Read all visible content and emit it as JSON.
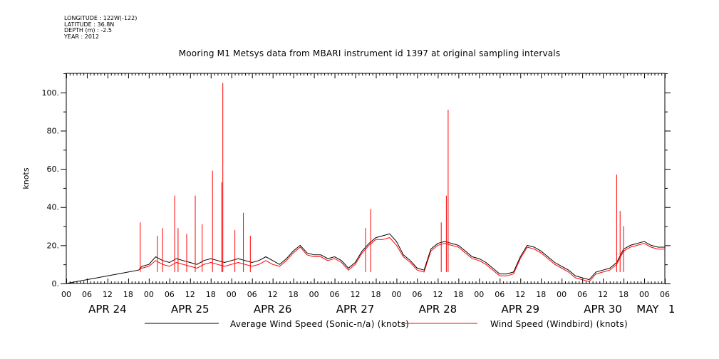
{
  "header": {
    "meta_lines": [
      "LONGITUDE : 122W(-122)",
      "LATITUDE : 36.8N",
      "DEPTH (m) : -2.5",
      "YEAR : 2012"
    ],
    "title": "Mooring M1 Metsys data from MBARI instrument id 1397 at original sampling intervals"
  },
  "chart_data": {
    "type": "line",
    "title": "Mooring M1 Metsys data from MBARI instrument id 1397 at original sampling intervals",
    "ylabel": "knots",
    "xlabel": "",
    "ylim": [
      0,
      110
    ],
    "xlim_hours": [
      0,
      174
    ],
    "grid": false,
    "y_ticks": [
      0,
      20,
      40,
      60,
      80,
      100
    ],
    "y_tick_labels": [
      "0.",
      "20.",
      "40.",
      "60.",
      "80.",
      "100."
    ],
    "x_hour_ticks": [
      0,
      6,
      12,
      18,
      24,
      30,
      36,
      42,
      48,
      54,
      60,
      66,
      72,
      78,
      84,
      90,
      96,
      102,
      108,
      114,
      120,
      126,
      132,
      138,
      144,
      150,
      156,
      162,
      168,
      174
    ],
    "x_hour_tick_labels": [
      "00",
      "06",
      "12",
      "18",
      "00",
      "06",
      "12",
      "18",
      "00",
      "06",
      "12",
      "18",
      "00",
      "06",
      "12",
      "18",
      "00",
      "06",
      "12",
      "18",
      "00",
      "06",
      "12",
      "18",
      "00",
      "06",
      "12",
      "18",
      "00",
      "06"
    ],
    "day_labels": [
      {
        "label": "APR 24",
        "hour": 12
      },
      {
        "label": "APR 25",
        "hour": 36
      },
      {
        "label": "APR 26",
        "hour": 60
      },
      {
        "label": "APR 27",
        "hour": 84
      },
      {
        "label": "APR 28",
        "hour": 108
      },
      {
        "label": "APR 29",
        "hour": 132
      },
      {
        "label": "APR 30",
        "hour": 156
      },
      {
        "label": "MAY",
        "hour": 169
      },
      {
        "label": "1",
        "hour": 176
      }
    ],
    "series": [
      {
        "name": "Average Wind Speed (Sonic-n/a) (knots)",
        "color": "#000000",
        "x": [
          0,
          21,
          22,
          24,
          26,
          28,
          30,
          32,
          34,
          36,
          38,
          40,
          42,
          44,
          46,
          48,
          50,
          52,
          54,
          56,
          58,
          60,
          62,
          64,
          66,
          68,
          70,
          72,
          74,
          76,
          78,
          80,
          82,
          84,
          86,
          88,
          90,
          92,
          94,
          96,
          98,
          100,
          102,
          104,
          106,
          108,
          110,
          112,
          114,
          116,
          118,
          120,
          122,
          124,
          126,
          128,
          130,
          132,
          134,
          136,
          138,
          140,
          142,
          144,
          146,
          148,
          150,
          152,
          154,
          156,
          158,
          160,
          162,
          164,
          166,
          168,
          170,
          172,
          174
        ],
        "y": [
          0,
          7,
          9,
          10,
          14,
          12,
          11,
          13,
          12,
          11,
          10,
          12,
          13,
          12,
          11,
          12,
          13,
          12,
          11,
          12,
          14,
          12,
          10,
          13,
          17,
          20,
          16,
          15,
          15,
          13,
          14,
          12,
          8,
          11,
          17,
          21,
          24,
          25,
          26,
          22,
          15,
          12,
          8,
          7,
          18,
          21,
          22,
          21,
          20,
          17,
          14,
          13,
          11,
          8,
          5,
          5,
          6,
          14,
          20,
          19,
          17,
          14,
          11,
          9,
          7,
          4,
          3,
          2,
          6,
          7,
          8,
          11,
          18,
          20,
          21,
          22,
          20,
          19,
          19
        ]
      },
      {
        "name": "Wind Speed (Windbird) (knots)",
        "color": "#ff0000",
        "x": [
          21,
          22,
          24,
          26,
          28,
          30,
          32,
          34,
          36,
          38,
          40,
          42,
          44,
          46,
          48,
          50,
          52,
          54,
          56,
          58,
          60,
          62,
          64,
          66,
          68,
          70,
          72,
          74,
          76,
          78,
          80,
          82,
          84,
          86,
          88,
          90,
          92,
          94,
          96,
          98,
          100,
          102,
          104,
          106,
          108,
          110,
          112,
          114,
          116,
          118,
          120,
          122,
          124,
          126,
          128,
          130,
          132,
          134,
          136,
          138,
          140,
          142,
          144,
          146,
          148,
          150,
          152,
          154,
          156,
          158,
          160,
          162,
          164,
          166,
          168,
          170,
          172,
          174
        ],
        "y": [
          7,
          8,
          9,
          12,
          10,
          9,
          11,
          10,
          9,
          8,
          10,
          11,
          10,
          9,
          10,
          11,
          10,
          9,
          10,
          12,
          10,
          9,
          12,
          16,
          19,
          15,
          14,
          14,
          12,
          13,
          11,
          7,
          10,
          16,
          20,
          23,
          23,
          24,
          20,
          14,
          11,
          7,
          6,
          17,
          20,
          21,
          20,
          19,
          16,
          13,
          12,
          10,
          7,
          4,
          4,
          5,
          13,
          19,
          18,
          16,
          13,
          10,
          8,
          6,
          3,
          2,
          1,
          5,
          6,
          7,
          10,
          17,
          19,
          20,
          21,
          19,
          18,
          18
        ],
        "spikes": [
          {
            "x": 21.5,
            "y": 32
          },
          {
            "x": 26.5,
            "y": 25
          },
          {
            "x": 28,
            "y": 29
          },
          {
            "x": 31.5,
            "y": 46
          },
          {
            "x": 32.5,
            "y": 29
          },
          {
            "x": 35,
            "y": 26
          },
          {
            "x": 37.5,
            "y": 46
          },
          {
            "x": 39.5,
            "y": 31
          },
          {
            "x": 42.5,
            "y": 59
          },
          {
            "x": 45.5,
            "y": 105
          },
          {
            "x": 45.2,
            "y": 53
          },
          {
            "x": 49,
            "y": 28
          },
          {
            "x": 51.5,
            "y": 37
          },
          {
            "x": 53.5,
            "y": 25
          },
          {
            "x": 87,
            "y": 29
          },
          {
            "x": 88.5,
            "y": 39
          },
          {
            "x": 109,
            "y": 32
          },
          {
            "x": 110.5,
            "y": 46
          },
          {
            "x": 111,
            "y": 91
          },
          {
            "x": 160,
            "y": 57
          },
          {
            "x": 161,
            "y": 38
          },
          {
            "x": 162,
            "y": 30
          }
        ]
      }
    ]
  }
}
